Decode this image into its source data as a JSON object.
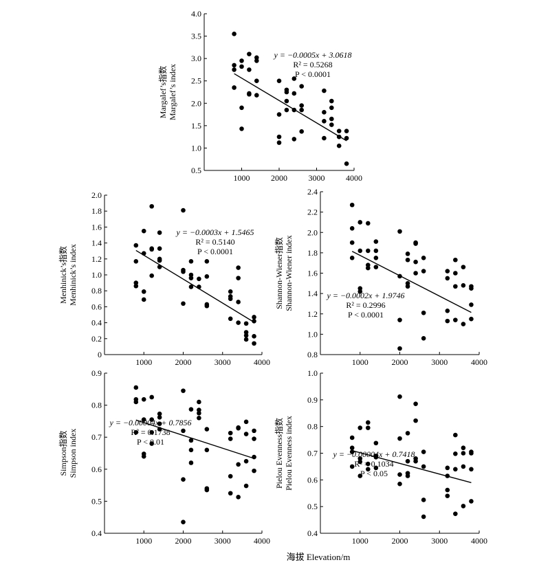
{
  "figure": {
    "x_axis_label": "海拔 Elevation/m"
  },
  "chart_data": [
    {
      "id": "margalef",
      "type": "scatter",
      "ylabel_cn": "Margalef’s指数",
      "ylabel_en": "Margalef’s index",
      "xlim": [
        0,
        4000
      ],
      "ylim": [
        0.5,
        4.0
      ],
      "xticks": [
        1000,
        2000,
        3000,
        4000
      ],
      "yticks": [
        0.5,
        1.0,
        1.5,
        2.0,
        2.5,
        3.0,
        3.5,
        4.0
      ],
      "ytick_labels": [
        "0.5",
        "1.0",
        "1.5",
        "2.0",
        "2.5",
        "3.0",
        "3.5",
        "4.0"
      ],
      "fit": {
        "slope": -0.0005,
        "intercept": 3.0618,
        "x_range": [
          800,
          3800
        ]
      },
      "eq_text": "y = −0.0005x + 3.0618",
      "r2_text": "R² = 0.5268",
      "p_text": "P < 0.0001",
      "points": [
        [
          800,
          3.55
        ],
        [
          800,
          2.85
        ],
        [
          800,
          2.75
        ],
        [
          800,
          2.35
        ],
        [
          1000,
          2.95
        ],
        [
          1000,
          2.82
        ],
        [
          1000,
          1.9
        ],
        [
          1000,
          1.43
        ],
        [
          1200,
          3.1
        ],
        [
          1200,
          2.75
        ],
        [
          1200,
          2.22
        ],
        [
          1200,
          2.2
        ],
        [
          1400,
          3.02
        ],
        [
          1400,
          2.95
        ],
        [
          1400,
          2.5
        ],
        [
          1400,
          2.18
        ],
        [
          2000,
          2.5
        ],
        [
          2000,
          1.75
        ],
        [
          2000,
          1.25
        ],
        [
          2000,
          1.12
        ],
        [
          2200,
          2.3
        ],
        [
          2200,
          2.25
        ],
        [
          2200,
          2.05
        ],
        [
          2200,
          1.85
        ],
        [
          2400,
          2.55
        ],
        [
          2400,
          2.22
        ],
        [
          2400,
          1.85
        ],
        [
          2400,
          1.2
        ],
        [
          2600,
          2.38
        ],
        [
          2600,
          1.95
        ],
        [
          2600,
          1.85
        ],
        [
          2600,
          1.37
        ],
        [
          3200,
          2.28
        ],
        [
          3200,
          1.8
        ],
        [
          3200,
          1.6
        ],
        [
          3200,
          1.22
        ],
        [
          3400,
          2.05
        ],
        [
          3400,
          1.9
        ],
        [
          3400,
          1.65
        ],
        [
          3400,
          1.52
        ],
        [
          3600,
          1.38
        ],
        [
          3600,
          1.25
        ],
        [
          3600,
          1.05
        ],
        [
          3800,
          1.38
        ],
        [
          3800,
          1.22
        ],
        [
          3800,
          0.65
        ]
      ]
    },
    {
      "id": "menhinick",
      "type": "scatter",
      "ylabel_cn": "Menhinick’s指数",
      "ylabel_en": "Menhinick’s index",
      "xlim": [
        0,
        4000
      ],
      "ylim": [
        0.0,
        2.0
      ],
      "xticks": [
        1000,
        2000,
        3000,
        4000
      ],
      "yticks": [
        0.0,
        0.2,
        0.4,
        0.6,
        0.8,
        1.0,
        1.2,
        1.4,
        1.6,
        1.8,
        2.0
      ],
      "ytick_labels": [
        "0",
        "0.2",
        "0.4",
        "0.6",
        "0.8",
        "1.0",
        "1.2",
        "1.4",
        "1.6",
        "1.8",
        "2.0"
      ],
      "fit": {
        "slope": -0.0003,
        "intercept": 1.5465,
        "x_range": [
          800,
          3800
        ]
      },
      "eq_text": "y = −0.0003x + 1.5465",
      "r2_text": "R² = 0.5140",
      "p_text": "P < 0.0001",
      "points": [
        [
          800,
          1.37
        ],
        [
          800,
          1.17
        ],
        [
          800,
          0.9
        ],
        [
          800,
          0.86
        ],
        [
          1000,
          1.55
        ],
        [
          1000,
          1.27
        ],
        [
          1000,
          0.79
        ],
        [
          1000,
          0.69
        ],
        [
          1200,
          1.86
        ],
        [
          1200,
          1.33
        ],
        [
          1200,
          1.32
        ],
        [
          1200,
          0.99
        ],
        [
          1400,
          1.53
        ],
        [
          1400,
          1.33
        ],
        [
          1400,
          1.2
        ],
        [
          1400,
          1.18
        ],
        [
          1400,
          1.1
        ],
        [
          2000,
          1.81
        ],
        [
          2000,
          1.06
        ],
        [
          2000,
          1.04
        ],
        [
          2000,
          0.64
        ],
        [
          2200,
          1.17
        ],
        [
          2200,
          1.0
        ],
        [
          2200,
          0.96
        ],
        [
          2200,
          0.85
        ],
        [
          2400,
          0.95
        ],
        [
          2400,
          0.85
        ],
        [
          2600,
          1.17
        ],
        [
          2600,
          0.98
        ],
        [
          2600,
          0.63
        ],
        [
          2600,
          0.61
        ],
        [
          3200,
          0.79
        ],
        [
          3200,
          0.73
        ],
        [
          3200,
          0.7
        ],
        [
          3200,
          0.45
        ],
        [
          3400,
          1.09
        ],
        [
          3400,
          0.96
        ],
        [
          3400,
          0.66
        ],
        [
          3400,
          0.4
        ],
        [
          3600,
          0.39
        ],
        [
          3600,
          0.28
        ],
        [
          3600,
          0.24
        ],
        [
          3600,
          0.19
        ],
        [
          3800,
          0.47
        ],
        [
          3800,
          0.42
        ],
        [
          3800,
          0.23
        ],
        [
          3800,
          0.14
        ]
      ]
    },
    {
      "id": "shannon",
      "type": "scatter",
      "ylabel_cn": "Shannon-Wiener指数",
      "ylabel_en": "Shannon-Wiener index",
      "xlim": [
        0,
        4000
      ],
      "ylim": [
        0.8,
        2.4
      ],
      "xticks": [
        1000,
        2000,
        3000,
        4000
      ],
      "yticks": [
        0.8,
        1.0,
        1.2,
        1.4,
        1.6,
        1.8,
        2.0,
        2.2,
        2.4
      ],
      "ytick_labels": [
        "0.8",
        "1.0",
        "1.2",
        "1.4",
        "1.6",
        "1.8",
        "2.0",
        "2.2",
        "2.4"
      ],
      "fit": {
        "slope": -0.0002,
        "intercept": 1.9746,
        "x_range": [
          800,
          3800
        ]
      },
      "eq_text": "y = −0.0002x + 1.9746",
      "r2_text": "R² = 0.2996",
      "p_text": "P < 0.0001",
      "points": [
        [
          800,
          2.27
        ],
        [
          800,
          2.04
        ],
        [
          800,
          1.9
        ],
        [
          800,
          1.75
        ],
        [
          1000,
          2.1
        ],
        [
          1000,
          1.82
        ],
        [
          1000,
          1.45
        ],
        [
          1000,
          1.42
        ],
        [
          1200,
          2.09
        ],
        [
          1200,
          1.82
        ],
        [
          1200,
          1.68
        ],
        [
          1200,
          1.65
        ],
        [
          1400,
          1.91
        ],
        [
          1400,
          1.82
        ],
        [
          1400,
          1.75
        ],
        [
          1400,
          1.66
        ],
        [
          2000,
          2.01
        ],
        [
          2000,
          1.57
        ],
        [
          2000,
          1.14
        ],
        [
          2000,
          0.86
        ],
        [
          2200,
          1.79
        ],
        [
          2200,
          1.73
        ],
        [
          2200,
          1.5
        ],
        [
          2200,
          1.47
        ],
        [
          2400,
          1.9
        ],
        [
          2400,
          1.89
        ],
        [
          2400,
          1.71
        ],
        [
          2400,
          1.6
        ],
        [
          2600,
          1.75
        ],
        [
          2600,
          1.62
        ],
        [
          2600,
          1.21
        ],
        [
          2600,
          0.96
        ],
        [
          3200,
          1.62
        ],
        [
          3200,
          1.55
        ],
        [
          3200,
          1.23
        ],
        [
          3200,
          1.13
        ],
        [
          3400,
          1.73
        ],
        [
          3400,
          1.6
        ],
        [
          3400,
          1.47
        ],
        [
          3400,
          1.14
        ],
        [
          3600,
          1.66
        ],
        [
          3600,
          1.48
        ],
        [
          3600,
          1.1
        ],
        [
          3800,
          1.47
        ],
        [
          3800,
          1.45
        ],
        [
          3800,
          1.29
        ],
        [
          3800,
          1.15
        ]
      ]
    },
    {
      "id": "simpson",
      "type": "scatter",
      "ylabel_cn": "Simpson指数",
      "ylabel_en": "Simpson index",
      "xlim": [
        0,
        4000
      ],
      "ylim": [
        0.4,
        0.9
      ],
      "xticks": [
        1000,
        2000,
        3000,
        4000
      ],
      "yticks": [
        0.4,
        0.5,
        0.6,
        0.7,
        0.8,
        0.9
      ],
      "ytick_labels": [
        "0.4",
        "0.5",
        "0.6",
        "0.7",
        "0.8",
        "0.9"
      ],
      "fit": {
        "slope": -4e-05,
        "intercept": 0.7856,
        "x_range": [
          800,
          3800
        ]
      },
      "eq_text": "y = −0.00004x + 0.7856",
      "r2_text": "R² = 0.1738",
      "p_text": "P < 0.01",
      "points": [
        [
          800,
          0.855
        ],
        [
          800,
          0.818
        ],
        [
          800,
          0.81
        ],
        [
          800,
          0.715
        ],
        [
          1000,
          0.818
        ],
        [
          1000,
          0.755
        ],
        [
          1000,
          0.648
        ],
        [
          1000,
          0.64
        ],
        [
          1200,
          0.825
        ],
        [
          1200,
          0.755
        ],
        [
          1200,
          0.715
        ],
        [
          1200,
          0.68
        ],
        [
          1400,
          0.773
        ],
        [
          1400,
          0.762
        ],
        [
          1400,
          0.742
        ],
        [
          1400,
          0.725
        ],
        [
          2000,
          0.845
        ],
        [
          2000,
          0.72
        ],
        [
          2000,
          0.568
        ],
        [
          2000,
          0.435
        ],
        [
          2200,
          0.787
        ],
        [
          2200,
          0.69
        ],
        [
          2200,
          0.66
        ],
        [
          2200,
          0.62
        ],
        [
          2400,
          0.81
        ],
        [
          2400,
          0.785
        ],
        [
          2400,
          0.775
        ],
        [
          2400,
          0.76
        ],
        [
          2600,
          0.725
        ],
        [
          2600,
          0.66
        ],
        [
          2600,
          0.54
        ],
        [
          2600,
          0.535
        ],
        [
          3200,
          0.713
        ],
        [
          3200,
          0.695
        ],
        [
          3200,
          0.578
        ],
        [
          3200,
          0.525
        ],
        [
          3400,
          0.73
        ],
        [
          3400,
          0.728
        ],
        [
          3400,
          0.615
        ],
        [
          3400,
          0.513
        ],
        [
          3600,
          0.748
        ],
        [
          3600,
          0.71
        ],
        [
          3600,
          0.625
        ],
        [
          3600,
          0.548
        ],
        [
          3800,
          0.72
        ],
        [
          3800,
          0.695
        ],
        [
          3800,
          0.638
        ],
        [
          3800,
          0.595
        ]
      ]
    },
    {
      "id": "pielou",
      "type": "scatter",
      "ylabel_cn": "Pielou Evenness指数",
      "ylabel_en": "Pielou Evenness index",
      "xlim": [
        0,
        4000
      ],
      "ylim": [
        0.4,
        1.0
      ],
      "xticks": [
        1000,
        2000,
        3000,
        4000
      ],
      "yticks": [
        0.4,
        0.5,
        0.6,
        0.7,
        0.8,
        0.9,
        1.0
      ],
      "ytick_labels": [
        "0.4",
        "0.5",
        "0.6",
        "0.7",
        "0.8",
        "0.9",
        "1.0"
      ],
      "fit": {
        "slope": -4e-05,
        "intercept": 0.7418,
        "x_range": [
          800,
          3800
        ]
      },
      "eq_text": "y = −0.00004x + 0.7418",
      "r2_text": "R² = 0.1034",
      "p_text": "P < 0.05",
      "points": [
        [
          800,
          0.758
        ],
        [
          800,
          0.72
        ],
        [
          800,
          0.705
        ],
        [
          800,
          0.65
        ],
        [
          1000,
          0.795
        ],
        [
          1000,
          0.68
        ],
        [
          1000,
          0.668
        ],
        [
          1000,
          0.615
        ],
        [
          1200,
          0.815
        ],
        [
          1200,
          0.795
        ],
        [
          1200,
          0.66
        ],
        [
          1200,
          0.64
        ],
        [
          1400,
          0.738
        ],
        [
          1400,
          0.69
        ],
        [
          1400,
          0.685
        ],
        [
          1400,
          0.645
        ],
        [
          2000,
          0.912
        ],
        [
          2000,
          0.755
        ],
        [
          2000,
          0.62
        ],
        [
          2000,
          0.585
        ],
        [
          2200,
          0.775
        ],
        [
          2200,
          0.67
        ],
        [
          2200,
          0.625
        ],
        [
          2200,
          0.615
        ],
        [
          2400,
          0.885
        ],
        [
          2400,
          0.822
        ],
        [
          2400,
          0.68
        ],
        [
          2400,
          0.67
        ],
        [
          2600,
          0.705
        ],
        [
          2600,
          0.65
        ],
        [
          2600,
          0.525
        ],
        [
          2600,
          0.462
        ],
        [
          3200,
          0.645
        ],
        [
          3200,
          0.615
        ],
        [
          3200,
          0.562
        ],
        [
          3200,
          0.54
        ],
        [
          3400,
          0.768
        ],
        [
          3400,
          0.698
        ],
        [
          3400,
          0.64
        ],
        [
          3400,
          0.473
        ],
        [
          3600,
          0.72
        ],
        [
          3600,
          0.7
        ],
        [
          3600,
          0.65
        ],
        [
          3600,
          0.502
        ],
        [
          3800,
          0.705
        ],
        [
          3800,
          0.7
        ],
        [
          3800,
          0.64
        ],
        [
          3800,
          0.52
        ]
      ]
    }
  ]
}
